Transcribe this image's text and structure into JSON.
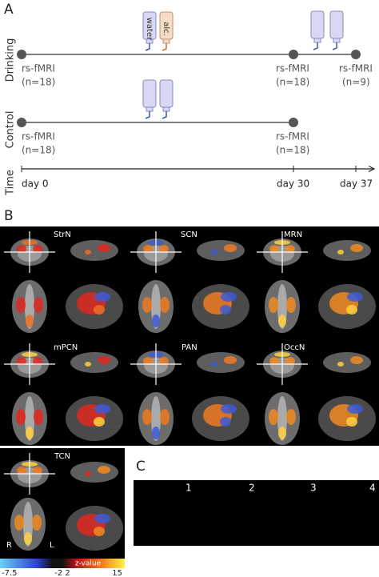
{
  "panel_a": {
    "label": "A",
    "rows": [
      "Drinking",
      "Control",
      "Time"
    ],
    "bottles": {
      "water": "water",
      "alc": "alc."
    },
    "drinking_scans": [
      {
        "name": "rs-fMRI",
        "n": "(n=18)"
      },
      {
        "name": "rs-fMRI",
        "n": "(n=18)"
      },
      {
        "name": "rs-fMRI",
        "n": "(n=9)"
      }
    ],
    "control_scans": [
      {
        "name": "rs-fMRI",
        "n": "(n=18)"
      },
      {
        "name": "rs-fMRI",
        "n": "(n=18)"
      }
    ],
    "days": [
      "day 0",
      "day 30",
      "day 37"
    ]
  },
  "panel_b": {
    "label": "B",
    "networks": [
      "StrN",
      "SCN",
      "MRN",
      "mPCN",
      "PAN",
      "OccN",
      "TCN"
    ],
    "orientation": [
      "R",
      "L"
    ],
    "colorbar": {
      "title": "z-value",
      "ticks": [
        "-7.5",
        "-2 2",
        "15"
      ]
    }
  },
  "panel_c": {
    "label": "C",
    "slices": [
      "1",
      "2",
      "3",
      "4"
    ]
  }
}
